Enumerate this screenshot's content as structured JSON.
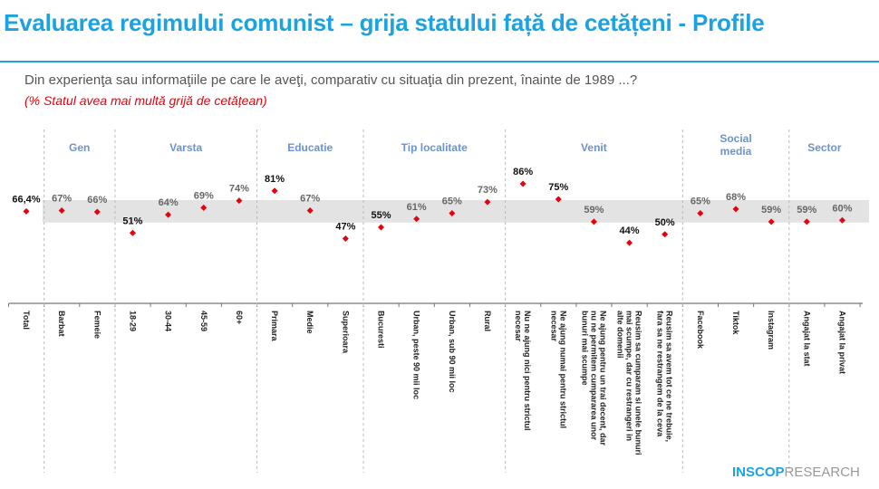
{
  "header": {
    "title": "Evaluarea regimului comunist – grija statului față de cetățeni - Profile"
  },
  "question": "Din experienţa sau informaţiile pe care le aveţi, comparativ cu situaţia din prezent, înainte de 1989 ...?",
  "subquestion": "(% Statul avea mai multă grijă de cetățean)",
  "logo": {
    "part1": "INSCOP",
    "part2": "RESEARCH"
  },
  "colors": {
    "title": "#1aa3e0",
    "marker": "#e8000b",
    "group_label": "#6b93d0",
    "band": "#e3e3e3"
  },
  "chart_data": {
    "type": "scatter",
    "title": "",
    "band": [
      58.4,
      74.4
    ],
    "groups": [
      {
        "name": "",
        "members": 1
      },
      {
        "name": "Gen",
        "members": 2
      },
      {
        "name": "Varsta",
        "members": 4
      },
      {
        "name": "Educatie",
        "members": 3
      },
      {
        "name": "Tip localitate",
        "members": 4
      },
      {
        "name": "Venit",
        "members": 5
      },
      {
        "name": "Social media",
        "members": 3
      },
      {
        "name": "Sector",
        "members": 2
      }
    ],
    "categories": [
      "Total",
      "Barbat",
      "Femeie",
      "18-29",
      "30-44",
      "45-59",
      "60+",
      "Primara",
      "Medie",
      "Superioara",
      "Bucuresti",
      "Urban, peste 90 mii loc",
      "Urban, sub 90 mii loc",
      "Rural",
      "Nu ne ajung nici pentru strictul necesar",
      "Ne ajung numai pentru strictul necesar",
      "Ne ajung pentru un trai decent, dar nu ne permitem cumpararea unor bunuri mai scumpe",
      "Reusim sa cumparam si unele bunuri mai scumpe, dar cu restrangeri in alte domenii",
      "Reusim sa avem tot ce ne trebuie, fara sa ne restrangem de la ceva",
      "Facebook",
      "Tiktok",
      "Instagram",
      "Angajat la stat",
      "Angajat la privat"
    ],
    "values": [
      66.4,
      67,
      66,
      51,
      64,
      69,
      74,
      81,
      67,
      47,
      55,
      61,
      65,
      73,
      86,
      75,
      59,
      44,
      50,
      65,
      68,
      59,
      59,
      60
    ],
    "labels": [
      "66,4%",
      "67%",
      "66%",
      "51%",
      "64%",
      "69%",
      "74%",
      "81%",
      "67%",
      "47%",
      "55%",
      "61%",
      "65%",
      "73%",
      "86%",
      "75%",
      "59%",
      "44%",
      "50%",
      "65%",
      "68%",
      "59%",
      "59%",
      "60%"
    ]
  }
}
